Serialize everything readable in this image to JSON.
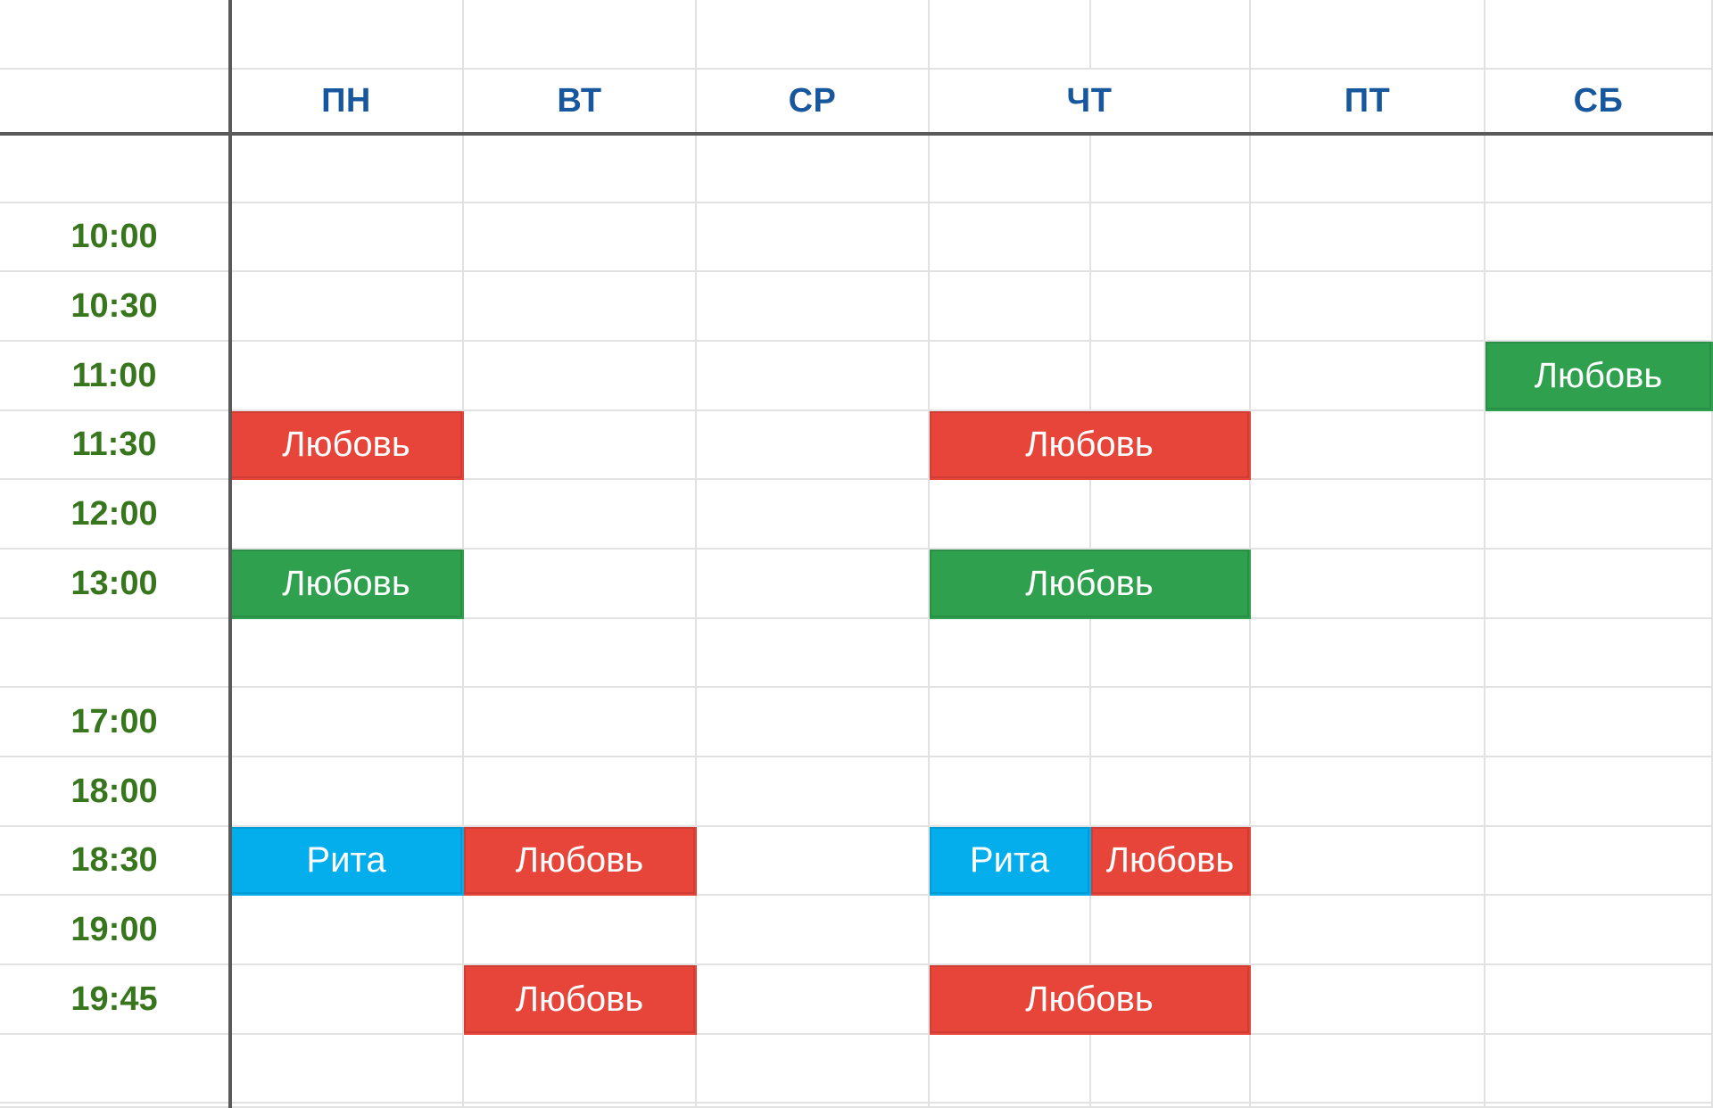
{
  "grid": {
    "days": [
      {
        "label": "ПН",
        "span": 1
      },
      {
        "label": "ВТ",
        "span": 1
      },
      {
        "label": "СР",
        "span": 1
      },
      {
        "label": "ЧТ",
        "span": 2
      },
      {
        "label": "ПТ",
        "span": 1
      },
      {
        "label": "СБ",
        "span": 1
      }
    ],
    "times": [
      "",
      "10:00",
      "10:30",
      "11:00",
      "11:30",
      "12:00",
      "13:00",
      "",
      "17:00",
      "18:00",
      "18:30",
      "19:00",
      "19:45",
      ""
    ],
    "events": [
      {
        "row": 3,
        "col": 6,
        "span": 1,
        "color": "green",
        "label": "Любовь"
      },
      {
        "row": 4,
        "col": 0,
        "span": 1,
        "color": "red",
        "label": "Любовь"
      },
      {
        "row": 4,
        "col": 3,
        "span": 2,
        "color": "red",
        "label": "Любовь"
      },
      {
        "row": 6,
        "col": 0,
        "span": 1,
        "color": "green",
        "label": "Любовь"
      },
      {
        "row": 6,
        "col": 3,
        "span": 2,
        "color": "green",
        "label": "Любовь"
      },
      {
        "row": 10,
        "col": 0,
        "span": 1,
        "color": "cyan",
        "label": "Рита"
      },
      {
        "row": 10,
        "col": 1,
        "span": 1,
        "color": "red",
        "label": "Любовь"
      },
      {
        "row": 10,
        "col": 3,
        "span": 1,
        "color": "cyan",
        "label": "Рита"
      },
      {
        "row": 10,
        "col": 4,
        "span": 1,
        "color": "red",
        "label": "Любовь"
      },
      {
        "row": 12,
        "col": 1,
        "span": 1,
        "color": "red",
        "label": "Любовь"
      },
      {
        "row": 12,
        "col": 3,
        "span": 2,
        "color": "red",
        "label": "Любовь"
      }
    ]
  },
  "colors": {
    "red": "#E8453A",
    "green": "#2FA04E",
    "cyan": "#04ADEC",
    "event_text": "#FFFFFF",
    "day_header_text": "#17579E",
    "time_text": "#38761D",
    "gridline": "#E2E2E2",
    "pane_divider": "#5A5A5A",
    "background": "#FFFFFF"
  }
}
